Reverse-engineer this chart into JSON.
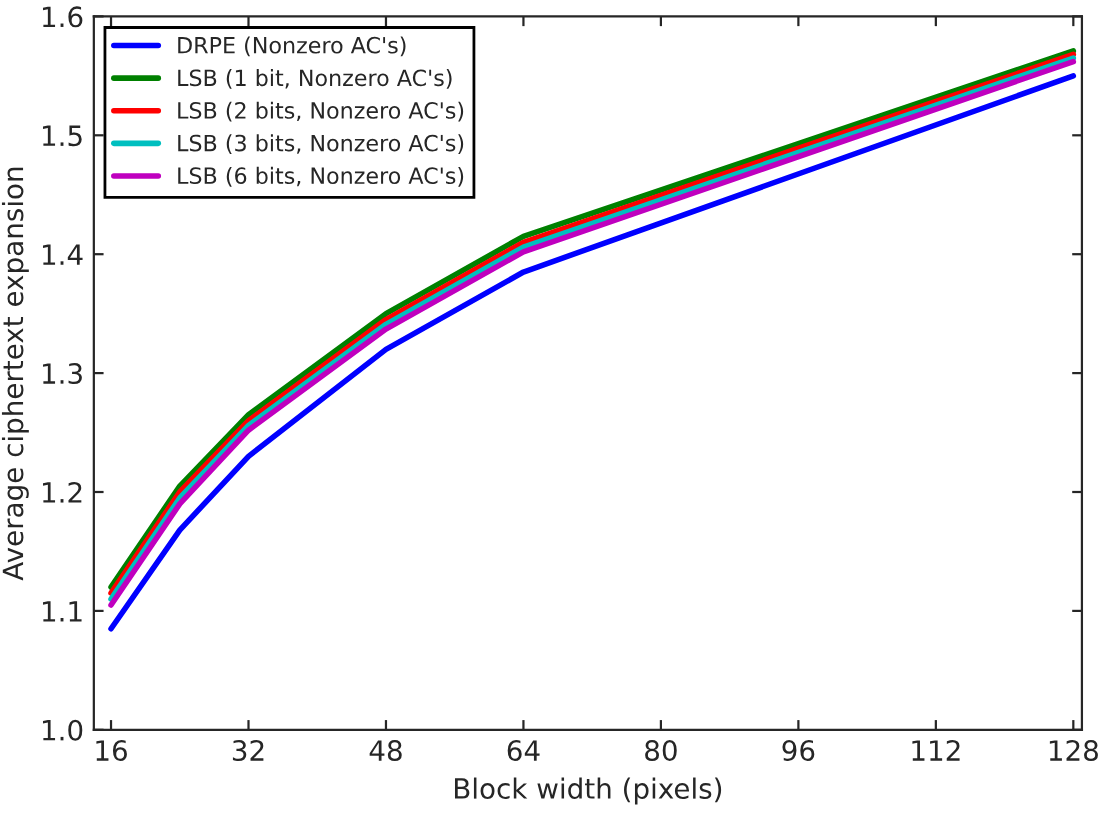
{
  "chart_data": {
    "type": "line",
    "xlabel": "Block width (pixels)",
    "ylabel": "Average ciphertext expansion",
    "x": [
      16,
      24,
      32,
      48,
      64,
      128
    ],
    "series": [
      {
        "name": "DRPE (Nonzero AC's)",
        "color": "#0000ff",
        "values": [
          1.085,
          1.168,
          1.23,
          1.32,
          1.385,
          1.55
        ]
      },
      {
        "name": "LSB (1 bit, Nonzero AC's)",
        "color": "#008000",
        "values": [
          1.12,
          1.205,
          1.265,
          1.35,
          1.415,
          1.571
        ]
      },
      {
        "name": "LSB (2 bits, Nonzero AC's)",
        "color": "#ff0000",
        "values": [
          1.115,
          1.2,
          1.26,
          1.345,
          1.41,
          1.568
        ]
      },
      {
        "name": "LSB (3 bits, Nonzero AC's)",
        "color": "#00bfbf",
        "values": [
          1.11,
          1.195,
          1.256,
          1.341,
          1.406,
          1.565
        ]
      },
      {
        "name": "LSB (6 bits, Nonzero AC's)",
        "color": "#bf00bf",
        "values": [
          1.105,
          1.19,
          1.252,
          1.337,
          1.402,
          1.562
        ]
      }
    ],
    "xlim": [
      14,
      129
    ],
    "xticks": [
      16,
      32,
      48,
      64,
      80,
      96,
      112,
      128
    ],
    "ylim": [
      1.0,
      1.6
    ],
    "yticks": [
      {
        "value": 1.0,
        "label": "1.0"
      },
      1.1,
      1.2,
      1.3,
      1.4,
      1.5,
      1.6
    ],
    "legend": "top left",
    "grid": false,
    "line_style": "solid",
    "marker": "none"
  }
}
